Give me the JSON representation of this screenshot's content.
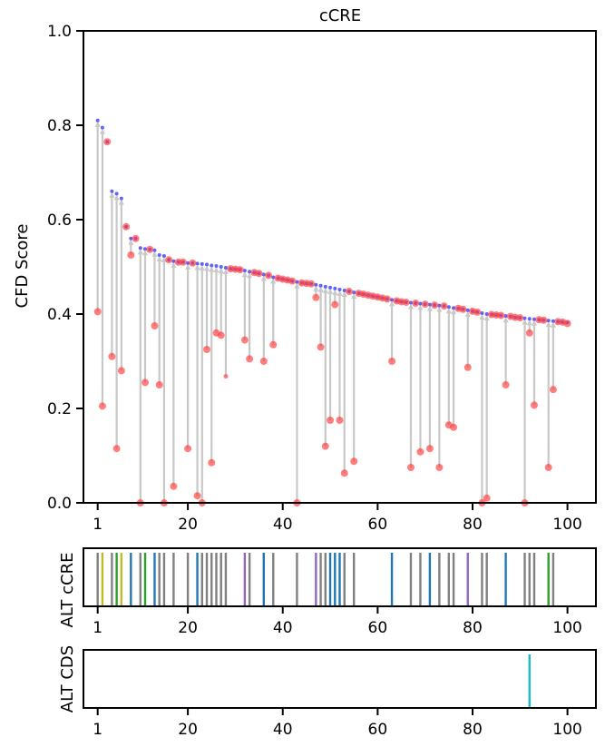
{
  "chart_data": [
    {
      "type": "scatter",
      "title": "cCRE",
      "xlabel": "",
      "ylabel": "CFD Score",
      "xlim": [
        -2,
        106
      ],
      "ylim": [
        0,
        1.0
      ],
      "x_ticks": [
        1,
        20,
        40,
        60,
        80,
        100
      ],
      "y_ticks": [
        "0.0",
        "0.2",
        "0.4",
        "0.6",
        "0.8",
        "1.0"
      ],
      "series": [
        {
          "role": "reference",
          "color": "#3b3bff",
          "points": [
            [
              1,
              0.81
            ],
            [
              2,
              0.795
            ],
            [
              3,
              0.765
            ],
            [
              4,
              0.66
            ],
            [
              5,
              0.655
            ],
            [
              6,
              0.645
            ],
            [
              7,
              0.585
            ],
            [
              8,
              0.56
            ],
            [
              9,
              0.56
            ],
            [
              10,
              0.54
            ],
            [
              11,
              0.538
            ],
            [
              12,
              0.537
            ],
            [
              13,
              0.535
            ],
            [
              14,
              0.525
            ],
            [
              15,
              0.523
            ],
            [
              16,
              0.515
            ],
            [
              17,
              0.512
            ],
            [
              18,
              0.51
            ],
            [
              19,
              0.51
            ],
            [
              20,
              0.508
            ],
            [
              21,
              0.508
            ],
            [
              22,
              0.507
            ],
            [
              23,
              0.506
            ],
            [
              24,
              0.505
            ],
            [
              25,
              0.503
            ],
            [
              26,
              0.502
            ],
            [
              27,
              0.5
            ],
            [
              28,
              0.498
            ],
            [
              29,
              0.496
            ],
            [
              30,
              0.495
            ],
            [
              31,
              0.494
            ],
            [
              32,
              0.492
            ],
            [
              33,
              0.49
            ],
            [
              34,
              0.488
            ],
            [
              35,
              0.486
            ],
            [
              36,
              0.484
            ],
            [
              37,
              0.482
            ],
            [
              38,
              0.478
            ],
            [
              39,
              0.476
            ],
            [
              40,
              0.474
            ],
            [
              41,
              0.472
            ],
            [
              42,
              0.47
            ],
            [
              43,
              0.468
            ],
            [
              44,
              0.466
            ],
            [
              45,
              0.465
            ],
            [
              46,
              0.464
            ],
            [
              47,
              0.462
            ],
            [
              48,
              0.46
            ],
            [
              49,
              0.458
            ],
            [
              50,
              0.456
            ],
            [
              51,
              0.454
            ],
            [
              52,
              0.452
            ],
            [
              53,
              0.45
            ],
            [
              54,
              0.448
            ],
            [
              55,
              0.446
            ],
            [
              56,
              0.444
            ],
            [
              57,
              0.442
            ],
            [
              58,
              0.44
            ],
            [
              59,
              0.438
            ],
            [
              60,
              0.436
            ],
            [
              61,
              0.434
            ],
            [
              62,
              0.432
            ],
            [
              63,
              0.43
            ],
            [
              64,
              0.428
            ],
            [
              65,
              0.426
            ],
            [
              66,
              0.425
            ],
            [
              67,
              0.424
            ],
            [
              68,
              0.423
            ],
            [
              69,
              0.422
            ],
            [
              70,
              0.421
            ],
            [
              71,
              0.42
            ],
            [
              72,
              0.419
            ],
            [
              73,
              0.418
            ],
            [
              74,
              0.417
            ],
            [
              75,
              0.415
            ],
            [
              76,
              0.413
            ],
            [
              77,
              0.412
            ],
            [
              78,
              0.41
            ],
            [
              79,
              0.408
            ],
            [
              80,
              0.406
            ],
            [
              81,
              0.404
            ],
            [
              82,
              0.402
            ],
            [
              83,
              0.4
            ],
            [
              84,
              0.399
            ],
            [
              85,
              0.398
            ],
            [
              86,
              0.397
            ],
            [
              87,
              0.396
            ],
            [
              88,
              0.395
            ],
            [
              89,
              0.393
            ],
            [
              90,
              0.392
            ],
            [
              91,
              0.391
            ],
            [
              92,
              0.39
            ],
            [
              93,
              0.389
            ],
            [
              94,
              0.388
            ],
            [
              95,
              0.387
            ],
            [
              96,
              0.386
            ],
            [
              97,
              0.385
            ],
            [
              98,
              0.384
            ],
            [
              99,
              0.383
            ],
            [
              100,
              0.382
            ]
          ]
        },
        {
          "role": "alternative",
          "color": "#ff3b3b",
          "points": [
            [
              1,
              0.405
            ],
            [
              2,
              0.205
            ],
            [
              3,
              0.765
            ],
            [
              4,
              0.31
            ],
            [
              5,
              0.115
            ],
            [
              6,
              0.28
            ],
            [
              7,
              0.585
            ],
            [
              8,
              0.525
            ],
            [
              9,
              0.56
            ],
            [
              10,
              0.0
            ],
            [
              11,
              0.255
            ],
            [
              12,
              0.537
            ],
            [
              13,
              0.375
            ],
            [
              14,
              0.25
            ],
            [
              15,
              0.0
            ],
            [
              16,
              0.515
            ],
            [
              17,
              0.035
            ],
            [
              18,
              0.51
            ],
            [
              19,
              0.51
            ],
            [
              20,
              0.115
            ],
            [
              21,
              0.508
            ],
            [
              22,
              0.015
            ],
            [
              23,
              0.0
            ],
            [
              24,
              0.325
            ],
            [
              25,
              0.085
            ],
            [
              26,
              0.36
            ],
            [
              27,
              0.355
            ],
            [
              28,
              0.268
            ],
            [
              29,
              0.496
            ],
            [
              30,
              0.495
            ],
            [
              31,
              0.494
            ],
            [
              32,
              0.345
            ],
            [
              33,
              0.305
            ],
            [
              34,
              0.488
            ],
            [
              35,
              0.486
            ],
            [
              36,
              0.3
            ],
            [
              37,
              0.482
            ],
            [
              38,
              0.335
            ],
            [
              39,
              0.476
            ],
            [
              40,
              0.474
            ],
            [
              41,
              0.472
            ],
            [
              42,
              0.47
            ],
            [
              43,
              0.0
            ],
            [
              44,
              0.466
            ],
            [
              45,
              0.465
            ],
            [
              46,
              0.464
            ],
            [
              47,
              0.435
            ],
            [
              48,
              0.33
            ],
            [
              49,
              0.12
            ],
            [
              50,
              0.175
            ],
            [
              51,
              0.42
            ],
            [
              52,
              0.175
            ],
            [
              53,
              0.063
            ],
            [
              54,
              0.448
            ],
            [
              55,
              0.088
            ],
            [
              56,
              0.444
            ],
            [
              57,
              0.442
            ],
            [
              58,
              0.44
            ],
            [
              59,
              0.438
            ],
            [
              60,
              0.436
            ],
            [
              61,
              0.434
            ],
            [
              62,
              0.432
            ],
            [
              63,
              0.3
            ],
            [
              64,
              0.428
            ],
            [
              65,
              0.426
            ],
            [
              66,
              0.425
            ],
            [
              67,
              0.075
            ],
            [
              68,
              0.423
            ],
            [
              69,
              0.108
            ],
            [
              70,
              0.421
            ],
            [
              71,
              0.115
            ],
            [
              72,
              0.419
            ],
            [
              73,
              0.075
            ],
            [
              74,
              0.417
            ],
            [
              75,
              0.165
            ],
            [
              76,
              0.16
            ],
            [
              77,
              0.412
            ],
            [
              78,
              0.41
            ],
            [
              79,
              0.287
            ],
            [
              80,
              0.406
            ],
            [
              81,
              0.404
            ],
            [
              82,
              0.0
            ],
            [
              83,
              0.01
            ],
            [
              84,
              0.399
            ],
            [
              85,
              0.398
            ],
            [
              86,
              0.397
            ],
            [
              87,
              0.25
            ],
            [
              88,
              0.395
            ],
            [
              89,
              0.393
            ],
            [
              90,
              0.392
            ],
            [
              91,
              0.0
            ],
            [
              92,
              0.36
            ],
            [
              93,
              0.207
            ],
            [
              94,
              0.388
            ],
            [
              95,
              0.387
            ],
            [
              96,
              0.075
            ],
            [
              97,
              0.24
            ],
            [
              98,
              0.384
            ],
            [
              99,
              0.383
            ],
            [
              100,
              0.38
            ]
          ]
        }
      ]
    },
    {
      "type": "strip",
      "ylabel": "ALT cCRE",
      "x_ticks": [
        1,
        20,
        40,
        60,
        80,
        100
      ],
      "xlim": [
        -2,
        106
      ],
      "lines": [
        {
          "x": 1,
          "color": "#808080"
        },
        {
          "x": 2,
          "color": "#bcbd22"
        },
        {
          "x": 4,
          "color": "#808080"
        },
        {
          "x": 5,
          "color": "#2ca02c"
        },
        {
          "x": 6,
          "color": "#bcbd22"
        },
        {
          "x": 8,
          "color": "#1f77b4"
        },
        {
          "x": 10,
          "color": "#808080"
        },
        {
          "x": 11,
          "color": "#2ca02c"
        },
        {
          "x": 13,
          "color": "#1f77b4"
        },
        {
          "x": 14,
          "color": "#808080"
        },
        {
          "x": 15,
          "color": "#808080"
        },
        {
          "x": 17,
          "color": "#808080"
        },
        {
          "x": 20,
          "color": "#808080"
        },
        {
          "x": 22,
          "color": "#1f77b4"
        },
        {
          "x": 23,
          "color": "#808080"
        },
        {
          "x": 24,
          "color": "#808080"
        },
        {
          "x": 25,
          "color": "#808080"
        },
        {
          "x": 26,
          "color": "#808080"
        },
        {
          "x": 27,
          "color": "#808080"
        },
        {
          "x": 28,
          "color": "#808080"
        },
        {
          "x": 32,
          "color": "#9467bd"
        },
        {
          "x": 33,
          "color": "#808080"
        },
        {
          "x": 36,
          "color": "#1f77b4"
        },
        {
          "x": 38,
          "color": "#808080"
        },
        {
          "x": 43,
          "color": "#808080"
        },
        {
          "x": 47,
          "color": "#9467bd"
        },
        {
          "x": 48,
          "color": "#808080"
        },
        {
          "x": 49,
          "color": "#808080"
        },
        {
          "x": 50,
          "color": "#1f77b4"
        },
        {
          "x": 51,
          "color": "#1f77b4"
        },
        {
          "x": 52,
          "color": "#1f77b4"
        },
        {
          "x": 53,
          "color": "#808080"
        },
        {
          "x": 55,
          "color": "#808080"
        },
        {
          "x": 63,
          "color": "#1f77b4"
        },
        {
          "x": 67,
          "color": "#808080"
        },
        {
          "x": 69,
          "color": "#808080"
        },
        {
          "x": 71,
          "color": "#1f77b4"
        },
        {
          "x": 73,
          "color": "#808080"
        },
        {
          "x": 75,
          "color": "#808080"
        },
        {
          "x": 76,
          "color": "#808080"
        },
        {
          "x": 79,
          "color": "#9467bd"
        },
        {
          "x": 82,
          "color": "#808080"
        },
        {
          "x": 83,
          "color": "#808080"
        },
        {
          "x": 87,
          "color": "#1f77b4"
        },
        {
          "x": 91,
          "color": "#808080"
        },
        {
          "x": 92,
          "color": "#808080"
        },
        {
          "x": 93,
          "color": "#808080"
        },
        {
          "x": 96,
          "color": "#2ca02c"
        },
        {
          "x": 97,
          "color": "#808080"
        }
      ]
    },
    {
      "type": "strip",
      "ylabel": "ALT CDS",
      "x_ticks": [
        1,
        20,
        40,
        60,
        80,
        100
      ],
      "xlim": [
        -2,
        106
      ],
      "lines": [
        {
          "x": 92,
          "color": "#17becf"
        }
      ]
    }
  ]
}
